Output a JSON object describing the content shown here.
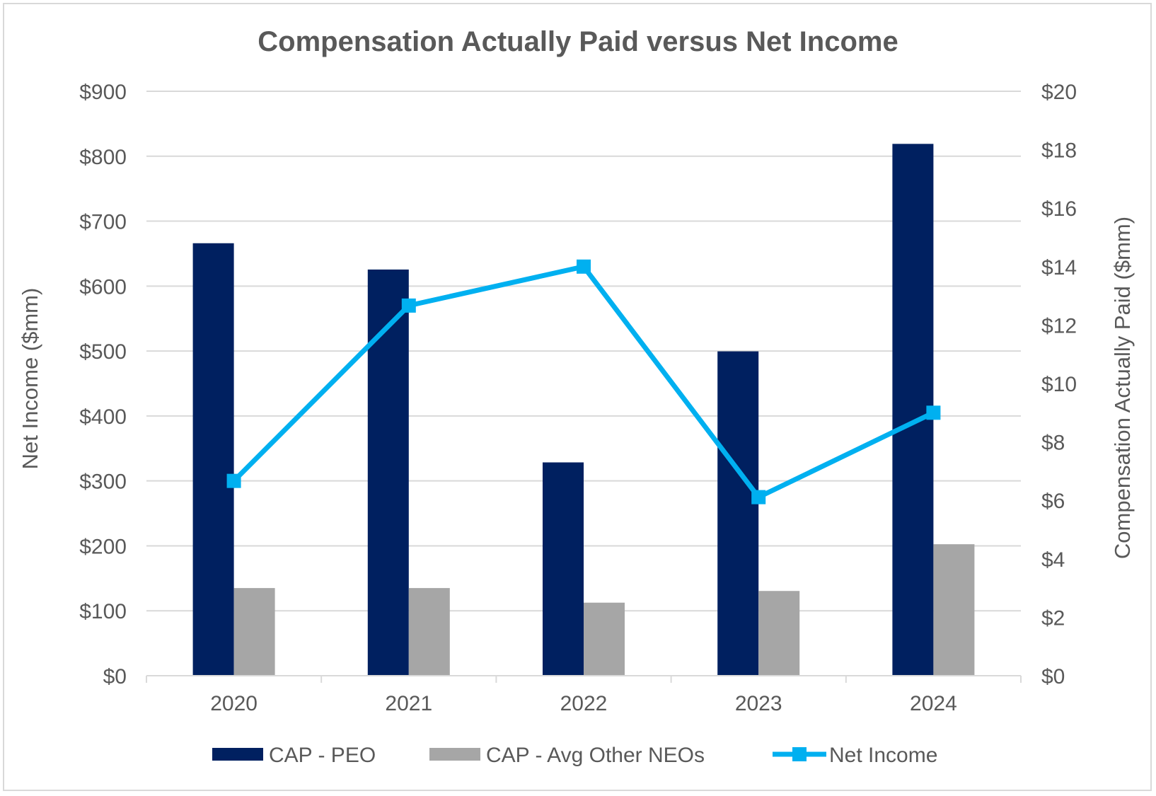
{
  "chart_data": {
    "type": "bar",
    "title": "Compensation Actually Paid versus Net Income",
    "categories": [
      "2020",
      "2021",
      "2022",
      "2023",
      "2024"
    ],
    "y_left": {
      "label": "Net Income ($mm)",
      "min": 0,
      "max": 900,
      "step": 100,
      "tick_labels": [
        "$0",
        "$100",
        "$200",
        "$300",
        "$400",
        "$500",
        "$600",
        "$700",
        "$800",
        "$900"
      ]
    },
    "y_right": {
      "label": "Compensation Actually Paid ($mm)",
      "min": 0,
      "max": 20,
      "step": 2,
      "tick_labels": [
        "$0",
        "$2",
        "$4",
        "$6",
        "$8",
        "$10",
        "$12",
        "$14",
        "$16",
        "$18",
        "$20"
      ]
    },
    "series": [
      {
        "name": "CAP - PEO",
        "type": "bar",
        "axis": "right",
        "color": "#002060",
        "values": [
          14.8,
          13.9,
          7.3,
          11.1,
          18.2
        ]
      },
      {
        "name": "CAP - Avg Other NEOs",
        "type": "bar",
        "axis": "right",
        "color": "#a6a6a6",
        "values": [
          3.0,
          3.0,
          2.5,
          2.9,
          4.5
        ]
      },
      {
        "name": "Net Income",
        "type": "line",
        "axis": "left",
        "marker": "square",
        "color": "#00b0f0",
        "values": [
          300,
          570,
          630,
          275,
          405
        ]
      }
    ],
    "grid": true,
    "legend": "bottom"
  }
}
